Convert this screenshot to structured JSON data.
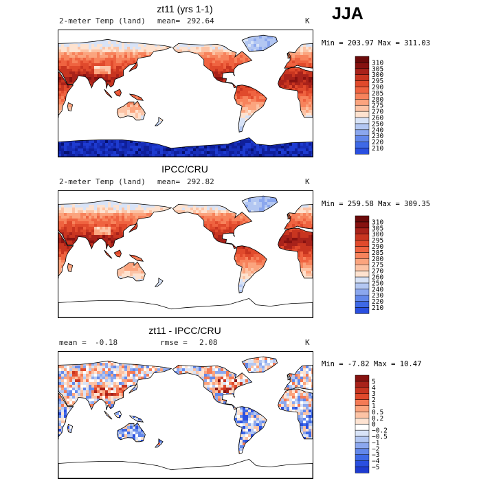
{
  "season": "JJA",
  "colors": {
    "warm": [
      "#fee2cf",
      "#fcc3a5",
      "#fba47e",
      "#f7835c",
      "#ef6340",
      "#e04a2c",
      "#c83520",
      "#a8221a",
      "#861210",
      "#6b0a0a"
    ],
    "cool": [
      "#d8e3f7",
      "#b3c7f2",
      "#8ba7ee",
      "#6287ea",
      "#3e69e6",
      "#2a4fe0",
      "#1e3bd0",
      "#162db8",
      "#0f1f9a",
      "#06106e"
    ],
    "diff": [
      "#06106e",
      "#0f1f9a",
      "#1e3bd0",
      "#2a4fe0",
      "#3e69e6",
      "#6287ea",
      "#8ba7ee",
      "#b3c7f2",
      "#d8e3f7",
      "#ffffff",
      "#fde3d2",
      "#fcc3a5",
      "#fba47e",
      "#f47a55",
      "#e04a2c",
      "#c83520",
      "#a8221a",
      "#861210",
      "#6b0a0a"
    ]
  },
  "panels": [
    {
      "title": "zt11 (yrs 1-1)",
      "left_label": "2-meter Temp (land)",
      "mid_label": "mean=",
      "mid_value": "292.64",
      "units": "K",
      "stats": "Min = 203.97 Max = 311.03"
    },
    {
      "title": "IPCC/CRU",
      "left_label": "2-meter Temp (land)",
      "mid_label": "mean=",
      "mid_value": "292.82",
      "units": "K",
      "stats": "Min = 259.58 Max = 309.35"
    },
    {
      "title": "zt11 - IPCC/CRU",
      "left_label": "mean =",
      "left_value": "-0.18",
      "mid_label": "rmse =",
      "mid_value": "2.08",
      "units": "K",
      "stats": "Min = -7.82 Max = 10.47"
    }
  ],
  "chart_data": [
    {
      "type": "heatmap",
      "title": "zt11 (yrs 1-1)",
      "subtitle": "2-meter Temp (land)",
      "mean": 292.64,
      "units": "K",
      "min": 203.97,
      "max": 311.03,
      "colorbar_ticks": [
        310,
        305,
        300,
        295,
        290,
        285,
        280,
        275,
        270,
        260,
        250,
        240,
        230,
        220,
        210
      ]
    },
    {
      "type": "heatmap",
      "title": "IPCC/CRU",
      "subtitle": "2-meter Temp (land)",
      "mean": 292.82,
      "units": "K",
      "min": 259.58,
      "max": 309.35,
      "colorbar_ticks": [
        310,
        305,
        300,
        295,
        290,
        285,
        280,
        275,
        270,
        260,
        250,
        240,
        230,
        220,
        210
      ]
    },
    {
      "type": "heatmap",
      "title": "zt11 - IPCC/CRU",
      "mean": -0.18,
      "rmse": 2.08,
      "units": "K",
      "min": -7.82,
      "max": 10.47,
      "colorbar_ticks": [
        "5",
        "4",
        "3",
        "2",
        "1",
        "0.5",
        "0.2",
        "0",
        "-0.2",
        "-0.5",
        "-1",
        "-2",
        "-3",
        "-4",
        "-5"
      ]
    }
  ]
}
